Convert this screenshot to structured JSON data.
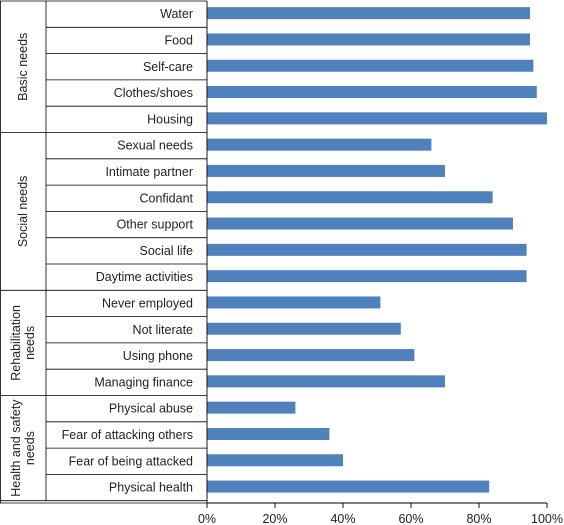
{
  "chart_data": {
    "type": "bar",
    "orientation": "horizontal",
    "bar_color": "#4F81BD",
    "grid": false,
    "xlim": [
      0,
      100
    ],
    "x_ticks": [
      "0%",
      "20%",
      "40%",
      "60%",
      "80%",
      "100%"
    ],
    "groups": [
      {
        "name": "Basic needs",
        "label_lines": [
          "Basic needs"
        ],
        "categories": [
          "Water",
          "Food",
          "Self-care",
          "Clothes/shoes",
          "Housing"
        ],
        "values": [
          95,
          95,
          96,
          97,
          100
        ]
      },
      {
        "name": "Social needs",
        "label_lines": [
          "Social needs"
        ],
        "categories": [
          "Sexual needs",
          "Intimate partner",
          "Confidant",
          "Other support",
          "Social life",
          "Daytime activities"
        ],
        "values": [
          66,
          70,
          84,
          90,
          94,
          94
        ]
      },
      {
        "name": "Rehabilitation needs",
        "label_lines": [
          "Rehabilitation",
          "needs"
        ],
        "categories": [
          "Never employed",
          "Not literate",
          "Using phone",
          "Managing finance"
        ],
        "values": [
          51,
          57,
          61,
          70
        ]
      },
      {
        "name": "Health and safety needs",
        "label_lines": [
          "Health and safety",
          "needs"
        ],
        "categories": [
          "Physical abuse",
          "Fear of attacking others",
          "Fear of being attacked",
          "Physical health"
        ],
        "values": [
          26,
          36,
          40,
          83
        ]
      }
    ]
  }
}
